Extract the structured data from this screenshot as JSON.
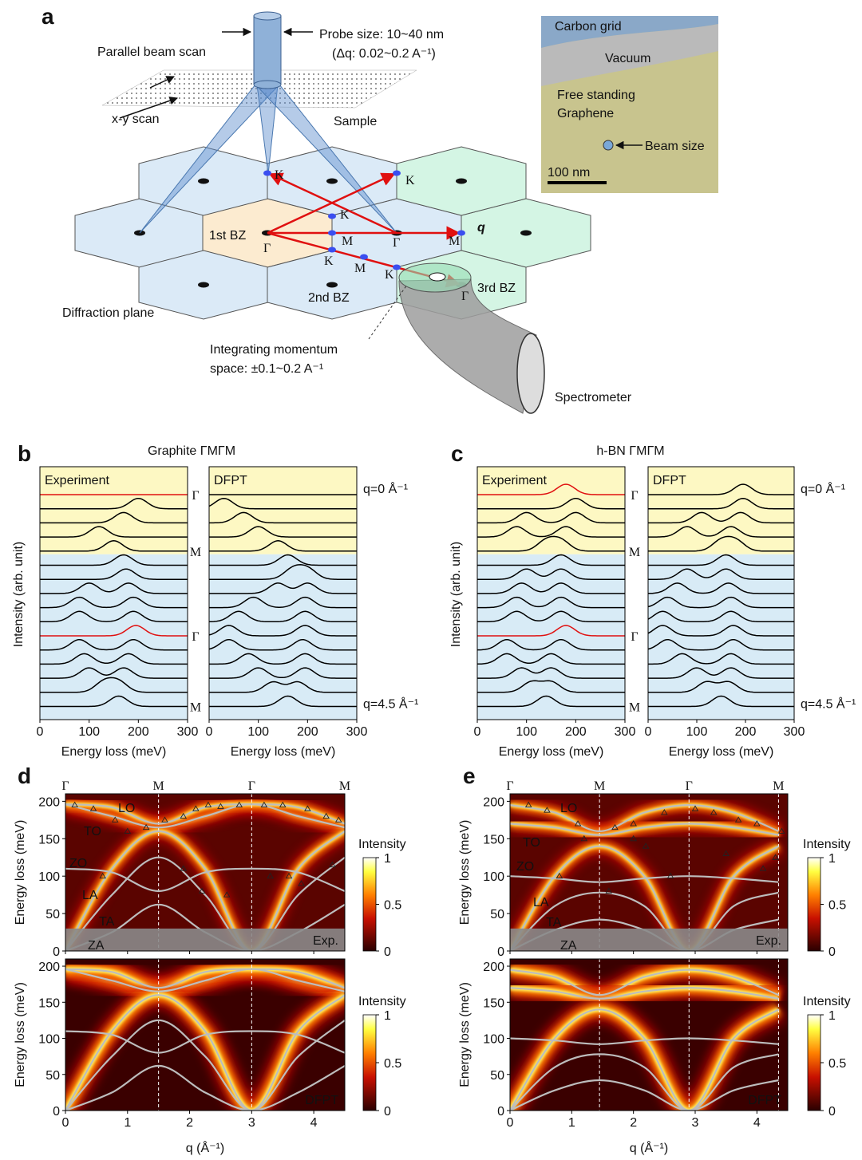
{
  "panel_a": {
    "label": "a",
    "probe_size": "Probe size: 10~40 nm",
    "delta_q": "(Δq: 0.02~0.2 A⁻¹)",
    "parallel_beam_scan": "Parallel beam scan",
    "xy_scan": "x-y scan",
    "sample": "Sample",
    "diffraction_plane": "Diffraction plane",
    "zones": [
      "1st BZ",
      "2nd BZ",
      "3rd BZ"
    ],
    "q": "q",
    "points": [
      "K",
      "K",
      "K",
      "M",
      "Γ",
      "Γ",
      "M",
      "K",
      "M",
      "K",
      "Γ"
    ],
    "integrating": [
      "Integrating momentum",
      "space: ±0.1~0.2 A⁻¹"
    ],
    "spectrometer": "Spectrometer",
    "inset": {
      "carbon_grid": "Carbon grid",
      "vacuum": "Vacuum",
      "graphene": [
        "Free standing",
        "Graphene"
      ],
      "beam_size": "Beam size",
      "scale_bar": "100 nm"
    }
  },
  "chart_data": [
    {
      "type": "waterfall",
      "panel_label": "b",
      "title": "Graphite ΓMΓM",
      "title_color": "#111111",
      "xlabel": "Energy loss (meV)",
      "ylabel": "Intensity (arb. unit)",
      "xlim": [
        0,
        300
      ],
      "xticks": [
        0,
        100,
        200,
        300
      ],
      "side_labels": [
        {
          "trace": 0,
          "label": "Γ"
        },
        {
          "trace": 4,
          "label": "M"
        },
        {
          "trace": 10,
          "label": "Γ"
        },
        {
          "trace": 15,
          "label": "M"
        }
      ],
      "q_labels": [
        "q=0 Å⁻¹",
        "q=4.5 Å⁻¹"
      ],
      "fills": [
        "#fdf8c3",
        "#d8ebf6"
      ],
      "highlight_color": "#e01010",
      "subplots": [
        {
          "title": "Experiment",
          "highlight": [
            0,
            10
          ],
          "traces": [
            [],
            [
              200
            ],
            [
              170
            ],
            [
              120
            ],
            [
              150
            ],
            [
              170
            ],
            [
              175
            ],
            [
              100,
              180
            ],
            [
              80,
              190
            ],
            [
              80,
              190
            ],
            [
              195
            ],
            [
              80,
              190
            ],
            [
              90,
              180
            ],
            [
              100,
              170
            ],
            [
              130,
              160
            ],
            [
              160
            ]
          ]
        },
        {
          "title": "DFPT",
          "highlight": [],
          "traces": [
            [],
            [
              30
            ],
            [
              70
            ],
            [
              100
            ],
            [
              140
            ],
            [
              160
            ],
            [
              170,
              200
            ],
            [
              140,
              200
            ],
            [
              90,
              195
            ],
            [
              60,
              195
            ],
            [
              40,
              195
            ],
            [
              40,
              190
            ],
            [
              80,
              195
            ],
            [
              100,
              195
            ],
            [
              130,
              180
            ],
            [
              160
            ]
          ]
        }
      ]
    },
    {
      "type": "waterfall",
      "panel_label": "c",
      "title": "h-BN ΓMΓM",
      "title_color": "#3434e8",
      "xlabel": "Energy loss (meV)",
      "ylabel": "Intensity (arb. unit)",
      "xlim": [
        0,
        300
      ],
      "xticks": [
        0,
        100,
        200,
        300
      ],
      "side_labels": [
        {
          "trace": 0,
          "label": "Γ"
        },
        {
          "trace": 4,
          "label": "M"
        },
        {
          "trace": 10,
          "label": "Γ"
        },
        {
          "trace": 15,
          "label": "M"
        }
      ],
      "q_labels": [
        "q=0 Å⁻¹",
        "q=4.5 Å⁻¹"
      ],
      "fills": [
        "#fdf8c3",
        "#d8ebf6"
      ],
      "highlight_color": "#e01010",
      "subplots": [
        {
          "title": "Experiment",
          "highlight": [
            0,
            10
          ],
          "traces": [
            [
              180
            ],
            [
              200
            ],
            [
              100,
              200
            ],
            [
              80,
              180
            ],
            [
              140,
              170
            ],
            [
              170
            ],
            [
              100,
              170
            ],
            [
              90,
              170
            ],
            [
              80,
              170
            ],
            [
              80,
              170
            ],
            [
              180
            ],
            [
              60,
              170
            ],
            [
              60,
              150
            ],
            [
              90,
              150
            ],
            [
              110,
              150
            ],
            [
              140
            ]
          ]
        },
        {
          "title": "DFPT",
          "highlight": [],
          "traces": [
            [
              195
            ],
            [
              195
            ],
            [
              110,
              190
            ],
            [
              80,
              170
            ],
            [
              150,
              180
            ],
            [
              160
            ],
            [
              80,
              160
            ],
            [
              60,
              165
            ],
            [
              40,
              170
            ],
            [
              30,
              170
            ],
            [
              30,
              175
            ],
            [
              40,
              175
            ],
            [
              70,
              170
            ],
            [
              100,
              170
            ],
            [
              120,
              165
            ],
            [
              150
            ]
          ]
        }
      ]
    },
    {
      "type": "dispersion",
      "panel_label": "d",
      "xlabel": "q (Å⁻¹)",
      "ylabel": "Energy loss (meV)",
      "xlim": [
        0,
        4.5
      ],
      "ylim": [
        0,
        210
      ],
      "xticks": [
        0,
        1,
        2,
        3,
        4
      ],
      "yticks": [
        0,
        50,
        100,
        150,
        200
      ],
      "top_labels": [
        {
          "value": 0,
          "label": "Γ"
        },
        {
          "value": 1.5,
          "label": "M"
        },
        {
          "value": 3,
          "label": "Γ"
        },
        {
          "value": 4.5,
          "label": "M"
        }
      ],
      "q": [
        0,
        0.75,
        1.5,
        2.25,
        3,
        3.75,
        4.5
      ],
      "branch_color": "#bdbdbd",
      "branches": [
        {
          "name": "LO",
          "values": [
            196,
            180,
            165,
            180,
            196,
            180,
            165
          ]
        },
        {
          "name": "TO",
          "values": [
            196,
            192,
            170,
            192,
            196,
            192,
            170
          ]
        },
        {
          "name": "ZO",
          "values": [
            110,
            105,
            80,
            105,
            110,
            105,
            80
          ]
        },
        {
          "name": "LA",
          "values": [
            0,
            110,
            160,
            110,
            0,
            110,
            160
          ]
        },
        {
          "name": "TA",
          "values": [
            0,
            75,
            125,
            75,
            0,
            75,
            125
          ]
        },
        {
          "name": "ZA",
          "values": [
            0,
            25,
            62,
            25,
            0,
            25,
            62
          ]
        }
      ],
      "colorbar": {
        "label": "Intensity",
        "lim": [
          0,
          1
        ],
        "ticks": [
          0,
          0.5,
          1
        ]
      },
      "subplots": [
        {
          "tag": "Exp.",
          "masked_below": 30,
          "exp_points": {
            "q": [
              0.15,
              0.45,
              0.8,
              1.0,
              1.3,
              1.6,
              1.9,
              2.1,
              2.3,
              2.5,
              2.8,
              3.2,
              3.5,
              3.9,
              4.2,
              4.4,
              0.6,
              1.9,
              2.2,
              2.6,
              3.3,
              3.6,
              3.8,
              4.3
            ],
            "E": [
              195,
              190,
              175,
              160,
              165,
              175,
              180,
              190,
              195,
              193,
              195,
              195,
              195,
              190,
              180,
              175,
              100,
              110,
              80,
              75,
              100,
              100,
              90,
              115
            ]
          }
        },
        {
          "tag": "DFPT"
        }
      ]
    },
    {
      "type": "dispersion",
      "panel_label": "e",
      "xlabel": "q (Å⁻¹)",
      "ylabel": "Energy loss (meV)",
      "xlim": [
        0,
        4.5
      ],
      "ylim": [
        0,
        210
      ],
      "xticks": [
        0,
        1,
        2,
        3,
        4
      ],
      "yticks": [
        0,
        50,
        100,
        150,
        200
      ],
      "top_labels": [
        {
          "value": 0,
          "label": "Γ"
        },
        {
          "value": 1.45,
          "label": "M"
        },
        {
          "value": 2.9,
          "label": "Γ"
        },
        {
          "value": 4.35,
          "label": "M"
        }
      ],
      "q": [
        0,
        0.725,
        1.45,
        2.175,
        2.9,
        3.625,
        4.35
      ],
      "branch_color": "#bdbdbd",
      "branches": [
        {
          "name": "LO",
          "values": [
            195,
            185,
            160,
            185,
            195,
            185,
            160
          ]
        },
        {
          "name": "TO",
          "values": [
            170,
            165,
            155,
            165,
            170,
            165,
            155
          ]
        },
        {
          "name": "ZO",
          "values": [
            100,
            97,
            92,
            97,
            100,
            97,
            92
          ]
        },
        {
          "name": "LA",
          "values": [
            0,
            100,
            140,
            100,
            0,
            100,
            140
          ]
        },
        {
          "name": "TA",
          "values": [
            0,
            60,
            78,
            60,
            0,
            60,
            78
          ]
        },
        {
          "name": "ZA",
          "values": [
            0,
            28,
            42,
            28,
            0,
            28,
            42
          ]
        }
      ],
      "colorbar": {
        "label": "Intensity",
        "lim": [
          0,
          1
        ],
        "ticks": [
          0,
          0.5,
          1
        ]
      },
      "subplots": [
        {
          "tag": "Exp.",
          "masked_below": 30,
          "exp_points": {
            "q": [
              0.3,
              0.6,
              1.1,
              1.7,
              2.0,
              2.5,
              3.0,
              3.3,
              3.7,
              4.0,
              4.4,
              0.8,
              1.2,
              1.6,
              2.0,
              2.2,
              2.6,
              3.5,
              4.1,
              4.3
            ],
            "E": [
              195,
              188,
              170,
              165,
              170,
              185,
              190,
              185,
              175,
              170,
              160,
              100,
              150,
              80,
              150,
              140,
              100,
              130,
              110,
              125
            ]
          }
        },
        {
          "tag": "DFPT"
        }
      ]
    }
  ]
}
